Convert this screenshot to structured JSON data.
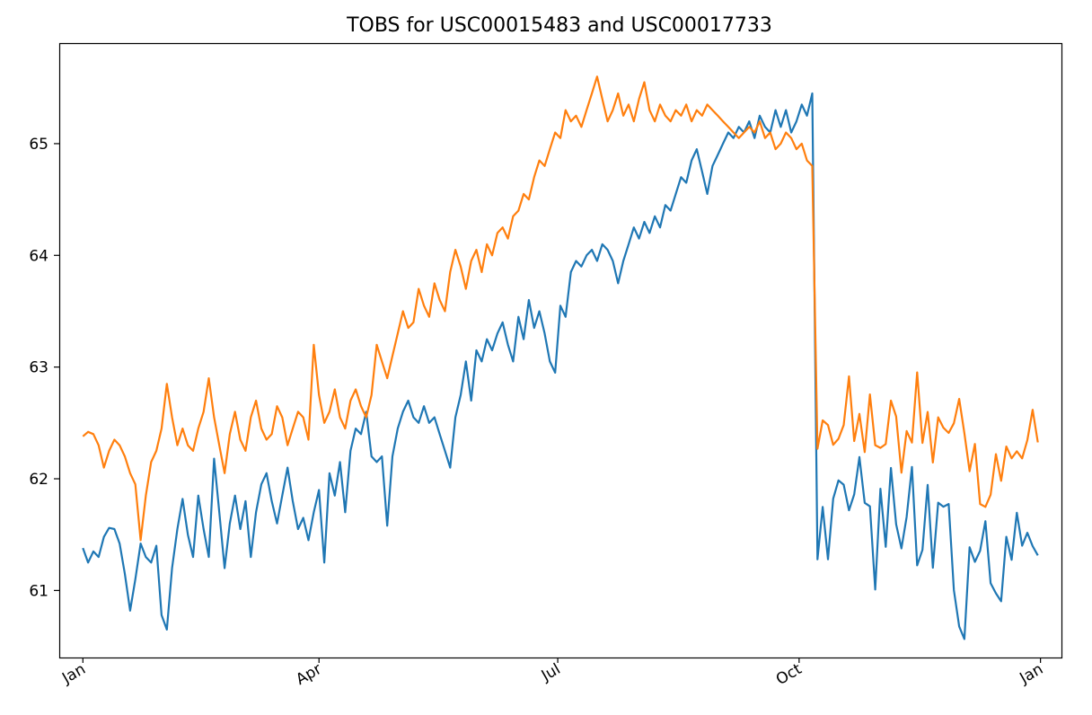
{
  "chart_data": {
    "type": "line",
    "title": "TOBS for USC00015483 and USC00017733",
    "xlabel": "",
    "ylabel": "",
    "x_ticks": [
      "Jan",
      "Apr",
      "Jul",
      "Oct",
      "Jan"
    ],
    "y_ticks": [
      "61",
      "62",
      "63",
      "64",
      "65"
    ],
    "xlim": [
      -9,
      373
    ],
    "ylim": [
      60.4,
      65.9
    ],
    "grid": false,
    "legend": "none",
    "series": [
      {
        "color": "#1f77b4",
        "points": [
          [
            0,
            61.38
          ],
          [
            2,
            61.25
          ],
          [
            4,
            61.35
          ],
          [
            6,
            61.3
          ],
          [
            8,
            61.48
          ],
          [
            10,
            61.56
          ],
          [
            12,
            61.55
          ],
          [
            14,
            61.42
          ],
          [
            16,
            61.15
          ],
          [
            18,
            60.82
          ],
          [
            20,
            61.1
          ],
          [
            22,
            61.42
          ],
          [
            24,
            61.3
          ],
          [
            26,
            61.25
          ],
          [
            28,
            61.4
          ],
          [
            30,
            60.78
          ],
          [
            32,
            60.65
          ],
          [
            34,
            61.2
          ],
          [
            36,
            61.55
          ],
          [
            38,
            61.82
          ],
          [
            40,
            61.5
          ],
          [
            42,
            61.3
          ],
          [
            44,
            61.85
          ],
          [
            46,
            61.55
          ],
          [
            48,
            61.3
          ],
          [
            50,
            62.18
          ],
          [
            52,
            61.7
          ],
          [
            54,
            61.2
          ],
          [
            56,
            61.6
          ],
          [
            58,
            61.85
          ],
          [
            60,
            61.55
          ],
          [
            62,
            61.8
          ],
          [
            64,
            61.3
          ],
          [
            66,
            61.7
          ],
          [
            68,
            61.95
          ],
          [
            70,
            62.05
          ],
          [
            72,
            61.8
          ],
          [
            74,
            61.6
          ],
          [
            76,
            61.85
          ],
          [
            78,
            62.1
          ],
          [
            80,
            61.8
          ],
          [
            82,
            61.55
          ],
          [
            84,
            61.65
          ],
          [
            86,
            61.45
          ],
          [
            88,
            61.7
          ],
          [
            90,
            61.9
          ],
          [
            92,
            61.25
          ],
          [
            94,
            62.05
          ],
          [
            96,
            61.85
          ],
          [
            98,
            62.15
          ],
          [
            100,
            61.7
          ],
          [
            102,
            62.25
          ],
          [
            104,
            62.45
          ],
          [
            106,
            62.4
          ],
          [
            108,
            62.6
          ],
          [
            110,
            62.2
          ],
          [
            112,
            62.15
          ],
          [
            114,
            62.2
          ],
          [
            116,
            61.58
          ],
          [
            118,
            62.2
          ],
          [
            120,
            62.45
          ],
          [
            122,
            62.6
          ],
          [
            124,
            62.7
          ],
          [
            126,
            62.55
          ],
          [
            128,
            62.5
          ],
          [
            130,
            62.65
          ],
          [
            132,
            62.5
          ],
          [
            134,
            62.55
          ],
          [
            136,
            62.4
          ],
          [
            138,
            62.25
          ],
          [
            140,
            62.1
          ],
          [
            142,
            62.55
          ],
          [
            144,
            62.75
          ],
          [
            146,
            63.05
          ],
          [
            148,
            62.7
          ],
          [
            150,
            63.15
          ],
          [
            152,
            63.05
          ],
          [
            154,
            63.25
          ],
          [
            156,
            63.15
          ],
          [
            158,
            63.3
          ],
          [
            160,
            63.4
          ],
          [
            162,
            63.2
          ],
          [
            164,
            63.05
          ],
          [
            166,
            63.45
          ],
          [
            168,
            63.25
          ],
          [
            170,
            63.6
          ],
          [
            172,
            63.35
          ],
          [
            174,
            63.5
          ],
          [
            176,
            63.3
          ],
          [
            178,
            63.05
          ],
          [
            180,
            62.95
          ],
          [
            182,
            63.55
          ],
          [
            184,
            63.45
          ],
          [
            186,
            63.85
          ],
          [
            188,
            63.95
          ],
          [
            190,
            63.9
          ],
          [
            192,
            64.0
          ],
          [
            194,
            64.05
          ],
          [
            196,
            63.95
          ],
          [
            198,
            64.1
          ],
          [
            200,
            64.05
          ],
          [
            202,
            63.95
          ],
          [
            204,
            63.75
          ],
          [
            206,
            63.95
          ],
          [
            208,
            64.1
          ],
          [
            210,
            64.25
          ],
          [
            212,
            64.15
          ],
          [
            214,
            64.3
          ],
          [
            216,
            64.2
          ],
          [
            218,
            64.35
          ],
          [
            220,
            64.25
          ],
          [
            222,
            64.45
          ],
          [
            224,
            64.4
          ],
          [
            226,
            64.55
          ],
          [
            228,
            64.7
          ],
          [
            230,
            64.65
          ],
          [
            232,
            64.85
          ],
          [
            234,
            64.95
          ],
          [
            236,
            64.75
          ],
          [
            238,
            64.55
          ],
          [
            240,
            64.8
          ],
          [
            242,
            64.9
          ],
          [
            244,
            65.0
          ],
          [
            246,
            65.1
          ],
          [
            248,
            65.05
          ],
          [
            250,
            65.15
          ],
          [
            252,
            65.1
          ],
          [
            254,
            65.2
          ],
          [
            256,
            65.05
          ],
          [
            258,
            65.25
          ],
          [
            260,
            65.15
          ],
          [
            262,
            65.1
          ],
          [
            264,
            65.3
          ],
          [
            266,
            65.15
          ],
          [
            268,
            65.3
          ],
          [
            270,
            65.1
          ],
          [
            272,
            65.2
          ],
          [
            274,
            65.35
          ],
          [
            276,
            65.25
          ],
          [
            278,
            65.45
          ]
        ]
      },
      {
        "color": "#ff7f0e",
        "points": [
          [
            0,
            62.38
          ],
          [
            2,
            62.42
          ],
          [
            4,
            62.4
          ],
          [
            6,
            62.3
          ],
          [
            8,
            62.1
          ],
          [
            10,
            62.25
          ],
          [
            12,
            62.35
          ],
          [
            14,
            62.3
          ],
          [
            16,
            62.2
          ],
          [
            18,
            62.05
          ],
          [
            20,
            61.95
          ],
          [
            22,
            61.45
          ],
          [
            24,
            61.85
          ],
          [
            26,
            62.15
          ],
          [
            28,
            62.25
          ],
          [
            30,
            62.45
          ],
          [
            32,
            62.85
          ],
          [
            34,
            62.55
          ],
          [
            36,
            62.3
          ],
          [
            38,
            62.45
          ],
          [
            40,
            62.3
          ],
          [
            42,
            62.25
          ],
          [
            44,
            62.45
          ],
          [
            46,
            62.6
          ],
          [
            48,
            62.9
          ],
          [
            50,
            62.55
          ],
          [
            52,
            62.3
          ],
          [
            54,
            62.05
          ],
          [
            56,
            62.4
          ],
          [
            58,
            62.6
          ],
          [
            60,
            62.35
          ],
          [
            62,
            62.25
          ],
          [
            64,
            62.55
          ],
          [
            66,
            62.7
          ],
          [
            68,
            62.45
          ],
          [
            70,
            62.35
          ],
          [
            72,
            62.4
          ],
          [
            74,
            62.65
          ],
          [
            76,
            62.55
          ],
          [
            78,
            62.3
          ],
          [
            80,
            62.45
          ],
          [
            82,
            62.6
          ],
          [
            84,
            62.55
          ],
          [
            86,
            62.35
          ],
          [
            88,
            63.2
          ],
          [
            90,
            62.75
          ],
          [
            92,
            62.5
          ],
          [
            94,
            62.6
          ],
          [
            96,
            62.8
          ],
          [
            98,
            62.55
          ],
          [
            100,
            62.45
          ],
          [
            102,
            62.7
          ],
          [
            104,
            62.8
          ],
          [
            106,
            62.65
          ],
          [
            108,
            62.55
          ],
          [
            110,
            62.75
          ],
          [
            112,
            63.2
          ],
          [
            114,
            63.05
          ],
          [
            116,
            62.9
          ],
          [
            118,
            63.1
          ],
          [
            120,
            63.3
          ],
          [
            122,
            63.5
          ],
          [
            124,
            63.35
          ],
          [
            126,
            63.4
          ],
          [
            128,
            63.7
          ],
          [
            130,
            63.55
          ],
          [
            132,
            63.45
          ],
          [
            134,
            63.75
          ],
          [
            136,
            63.6
          ],
          [
            138,
            63.5
          ],
          [
            140,
            63.85
          ],
          [
            142,
            64.05
          ],
          [
            144,
            63.9
          ],
          [
            146,
            63.7
          ],
          [
            148,
            63.95
          ],
          [
            150,
            64.05
          ],
          [
            152,
            63.85
          ],
          [
            154,
            64.1
          ],
          [
            156,
            64.0
          ],
          [
            158,
            64.2
          ],
          [
            160,
            64.25
          ],
          [
            162,
            64.15
          ],
          [
            164,
            64.35
          ],
          [
            166,
            64.4
          ],
          [
            168,
            64.55
          ],
          [
            170,
            64.5
          ],
          [
            172,
            64.7
          ],
          [
            174,
            64.85
          ],
          [
            176,
            64.8
          ],
          [
            178,
            64.95
          ],
          [
            180,
            65.1
          ],
          [
            182,
            65.05
          ],
          [
            184,
            65.3
          ],
          [
            186,
            65.2
          ],
          [
            188,
            65.25
          ],
          [
            190,
            65.15
          ],
          [
            192,
            65.3
          ],
          [
            194,
            65.45
          ],
          [
            196,
            65.6
          ],
          [
            198,
            65.4
          ],
          [
            200,
            65.2
          ],
          [
            202,
            65.3
          ],
          [
            204,
            65.45
          ],
          [
            206,
            65.25
          ],
          [
            208,
            65.35
          ],
          [
            210,
            65.2
          ],
          [
            212,
            65.4
          ],
          [
            214,
            65.55
          ],
          [
            216,
            65.3
          ],
          [
            218,
            65.2
          ],
          [
            220,
            65.35
          ],
          [
            222,
            65.25
          ],
          [
            224,
            65.2
          ],
          [
            226,
            65.3
          ],
          [
            228,
            65.25
          ],
          [
            230,
            65.35
          ],
          [
            232,
            65.2
          ],
          [
            234,
            65.3
          ],
          [
            236,
            65.25
          ],
          [
            238,
            65.35
          ],
          [
            240,
            65.3
          ],
          [
            242,
            65.25
          ],
          [
            244,
            65.2
          ],
          [
            246,
            65.15
          ],
          [
            248,
            65.1
          ],
          [
            250,
            65.05
          ],
          [
            252,
            65.1
          ],
          [
            254,
            65.15
          ],
          [
            256,
            65.1
          ],
          [
            258,
            65.2
          ],
          [
            260,
            65.05
          ],
          [
            262,
            65.1
          ],
          [
            264,
            64.95
          ],
          [
            266,
            65.0
          ],
          [
            268,
            65.1
          ],
          [
            270,
            65.05
          ],
          [
            272,
            64.95
          ],
          [
            274,
            65.0
          ],
          [
            276,
            64.85
          ],
          [
            278,
            64.8
          ]
        ]
      }
    ]
  }
}
